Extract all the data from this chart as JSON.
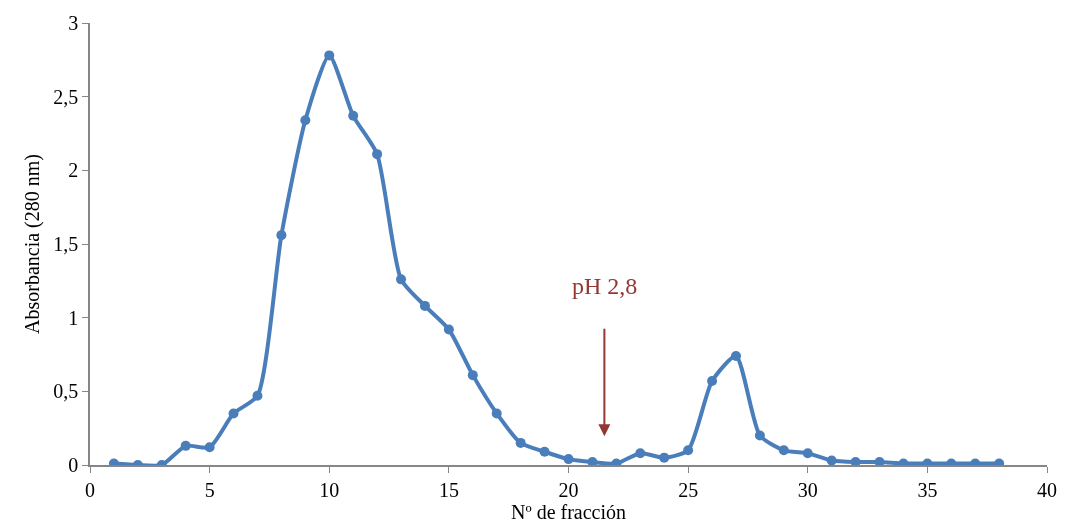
{
  "chart_data": {
    "type": "line",
    "xlabel": "Nº de fracción",
    "ylabel": "Absorbancia (280 nm)",
    "x": [
      1,
      2,
      3,
      4,
      5,
      6,
      7,
      8,
      9,
      10,
      11,
      12,
      13,
      14,
      15,
      16,
      17,
      18,
      19,
      20,
      21,
      22,
      23,
      24,
      25,
      26,
      27,
      28,
      29,
      30,
      31,
      32,
      33,
      34,
      35,
      36,
      37,
      38
    ],
    "series": [
      {
        "color": "#4a7ebb",
        "values": [
          0.01,
          0,
          0,
          0.13,
          0.12,
          0.35,
          0.47,
          1.56,
          2.34,
          2.78,
          2.37,
          2.11,
          1.26,
          1.08,
          0.92,
          0.61,
          0.35,
          0.15,
          0.09,
          0.04,
          0.02,
          0.01,
          0.08,
          0.05,
          0.1,
          0.57,
          0.74,
          0.2,
          0.1,
          0.08,
          0.03,
          0.02,
          0.02,
          0.01,
          0.01,
          0.01,
          0.01,
          0.01
        ]
      }
    ],
    "xlim": [
      0,
      40
    ],
    "xticks": [
      0,
      5,
      10,
      15,
      20,
      25,
      30,
      35,
      40
    ],
    "ylim": [
      0,
      3
    ],
    "yticks": [
      0,
      {
        "value": 0.5,
        "label": "0,5"
      },
      1,
      {
        "value": 1.5,
        "label": "1,5"
      },
      2,
      {
        "value": 2.5,
        "label": "2,5"
      },
      3
    ],
    "marker": "circle",
    "line_style": "solid",
    "annotations": [
      "pH 2,8"
    ]
  }
}
